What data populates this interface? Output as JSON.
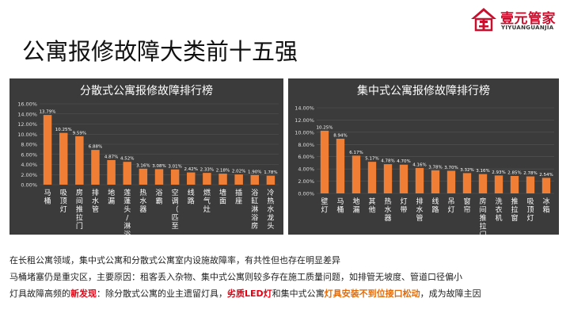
{
  "brand": {
    "name_cn": "壹元管家",
    "name_en": "YIYUANGUANJIA",
    "color": "#c8102e"
  },
  "slide_title": "公寓报修故障大类前十五强",
  "bar_color": "#f07f35",
  "chart_data": [
    {
      "type": "bar",
      "title": "分散式公寓报修故障排行榜",
      "categories": [
        "马桶",
        "吸顶灯",
        "房间推拉门",
        "排水管",
        "地漏",
        "莲蓬头/淋浴喷...",
        "热水器",
        "浴霸",
        "空调（匹至...",
        "线路",
        "燃气灶",
        "墙面",
        "插座",
        "浴缸淋浴房",
        "冷热水龙头"
      ],
      "values": [
        13.79,
        10.25,
        9.59,
        6.88,
        4.87,
        4.52,
        3.16,
        3.08,
        3.01,
        2.42,
        2.33,
        2.18,
        2.02,
        1.9,
        1.78
      ],
      "value_labels": [
        "13.79%",
        "10.25%",
        "9.59%",
        "6.88%",
        "4.87%",
        "4.52%",
        "3.16%",
        "3.08%",
        "3.01%",
        "2.42%",
        "2.33%",
        "2.18%",
        "2.02%",
        "1.90%",
        "1.78%"
      ],
      "yticks": [
        "0.00%",
        "2.00%",
        "4.00%",
        "6.00%",
        "8.00%",
        "10.00%",
        "12.00%",
        "14.00%",
        "16.00%"
      ],
      "ylim": [
        0,
        16
      ],
      "grid": true
    },
    {
      "type": "bar",
      "title": "集中式公寓报修故障排行榜",
      "categories": [
        "壁灯",
        "马桶",
        "地漏",
        "其他",
        "热水器",
        "灯带",
        "排水管",
        "线路",
        "吊灯",
        "窗帘",
        "房间推拉门",
        "洗衣机",
        "推拉窗",
        "吸顶灯",
        "冰箱"
      ],
      "values": [
        10.25,
        8.94,
        6.17,
        5.17,
        4.78,
        4.7,
        4.16,
        3.78,
        3.7,
        3.32,
        3.16,
        2.93,
        2.85,
        2.78,
        2.54
      ],
      "value_labels": [
        "10.25%",
        "8.94%",
        "6.17%",
        "5.17%",
        "4.78%",
        "4.70%",
        "4.16%",
        "3.78%",
        "3.70%",
        "3.32%",
        "3.16%",
        "2.93%",
        "2.85%",
        "2.78%",
        "2.54%"
      ],
      "yticks": [
        "0.00%",
        "2.00%",
        "4.00%",
        "6.00%",
        "8.00%",
        "10.00%",
        "12.00%",
        "14.00%"
      ],
      "ylim": [
        0,
        14
      ],
      "grid": true
    }
  ],
  "notes": {
    "line1": "在长租公寓领域，集中式公寓和分散式公寓室内设施故障率，有共性但也存在明显差异",
    "line2": "马桶堵塞仍是重灾区，主要原因：租客丢入杂物、集中式公寓则较多存在施工质量问题，如排管无坡度、管道口径偏小",
    "line3_a": "灯具故障高频的",
    "line3_b": "新发现",
    "line3_c": "：除分散式公寓的业主遗留灯具，",
    "line3_d": "劣质LED灯",
    "line3_e": "和集中式公寓",
    "line3_f": "灯具安装不到位接口松动",
    "line3_g": "，成为故障主因"
  }
}
